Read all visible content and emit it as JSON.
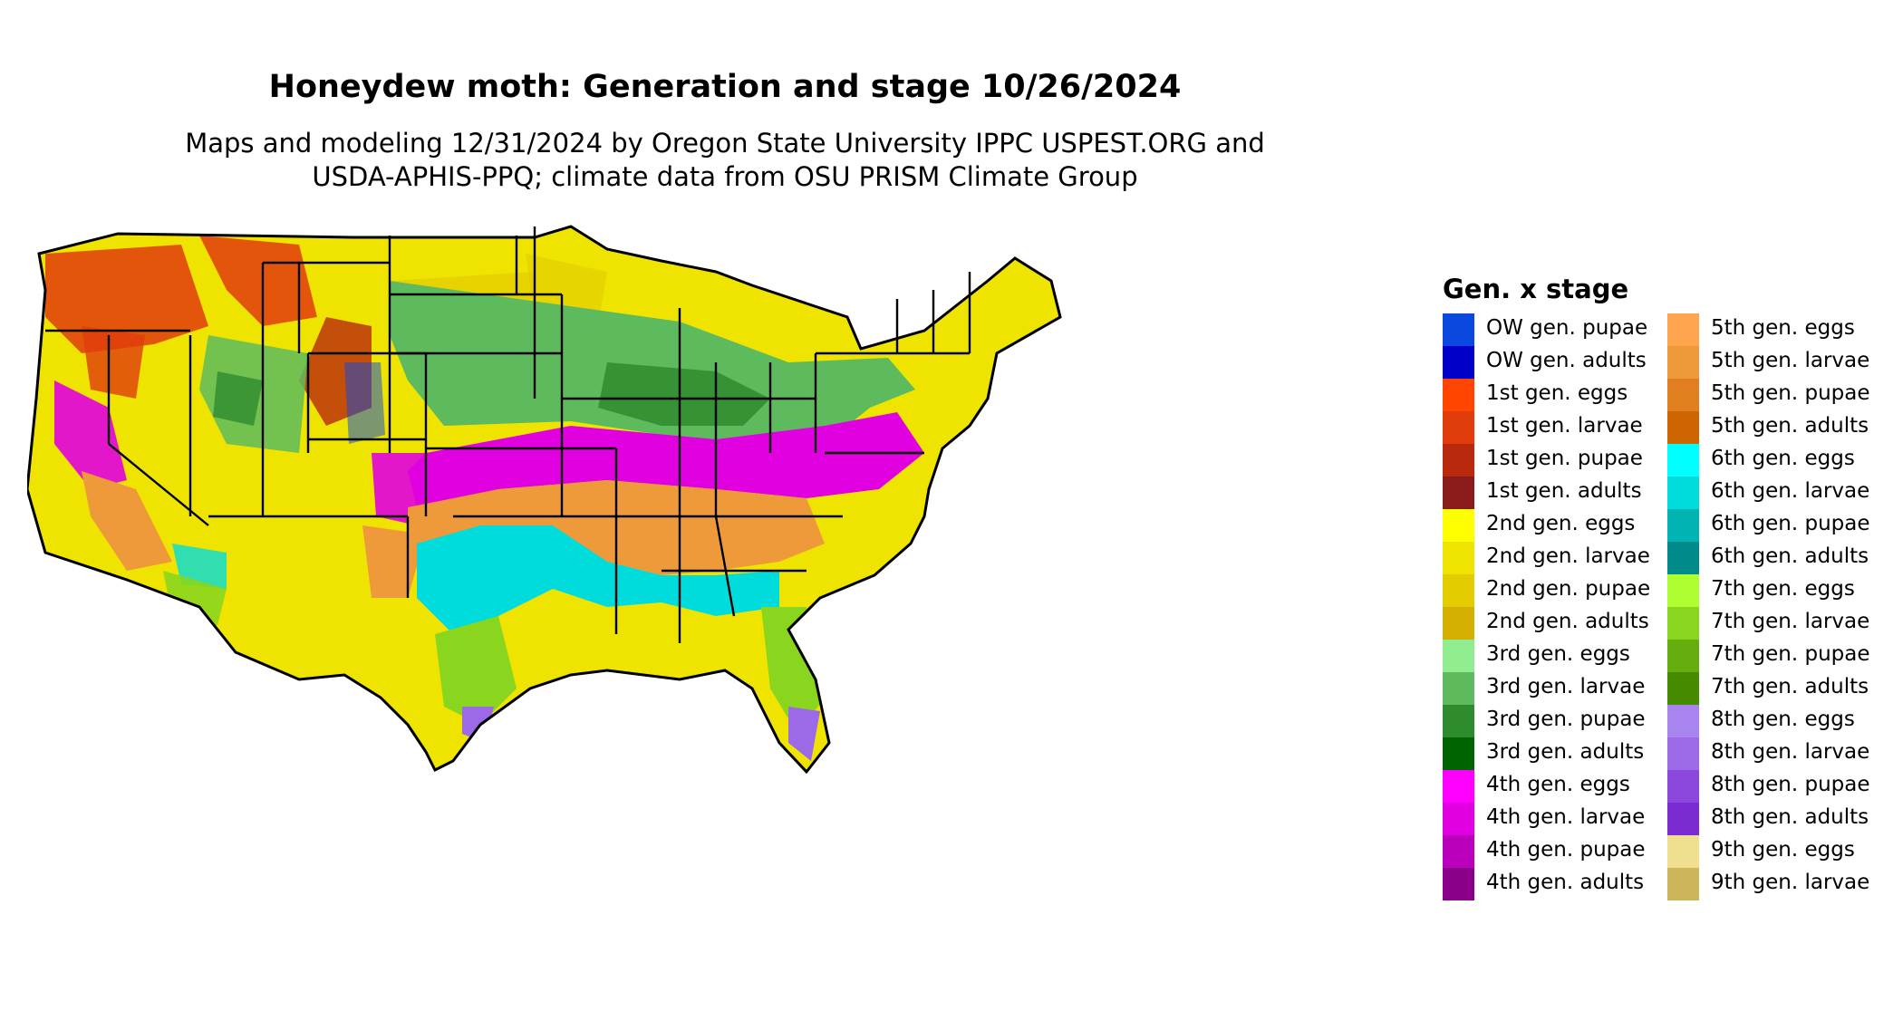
{
  "title": "Honeydew moth: Generation and stage 10/26/2024",
  "subtitle_line1": "Maps and modeling 12/31/2024 by Oregon State University IPPC USPEST.ORG and",
  "subtitle_line2": "USDA-APHIS-PPQ; climate data from OSU PRISM Climate Group",
  "legend": {
    "title": "Gen. x stage",
    "items": [
      {
        "label": "OW gen. pupae",
        "color": "#0a48e0"
      },
      {
        "label": "OW gen. adults",
        "color": "#0000c8"
      },
      {
        "label": "1st gen. eggs",
        "color": "#ff4500"
      },
      {
        "label": "1st gen. larvae",
        "color": "#e03c0c"
      },
      {
        "label": "1st gen. pupae",
        "color": "#b8290e"
      },
      {
        "label": "1st gen. adults",
        "color": "#8b1a1a"
      },
      {
        "label": "2nd gen. eggs",
        "color": "#ffff00"
      },
      {
        "label": "2nd gen. larvae",
        "color": "#eee400"
      },
      {
        "label": "2nd gen. pupae",
        "color": "#e3cc00"
      },
      {
        "label": "2nd gen. adults",
        "color": "#d4b000"
      },
      {
        "label": "3rd gen. eggs",
        "color": "#90ee90"
      },
      {
        "label": "3rd gen. larvae",
        "color": "#5dbb5d"
      },
      {
        "label": "3rd gen. pupae",
        "color": "#2e8b2e"
      },
      {
        "label": "3rd gen. adults",
        "color": "#006400"
      },
      {
        "label": "4th gen. eggs",
        "color": "#ff00ff"
      },
      {
        "label": "4th gen. larvae",
        "color": "#e000e0"
      },
      {
        "label": "4th gen. pupae",
        "color": "#bb00bb"
      },
      {
        "label": "4th gen. adults",
        "color": "#8b008b"
      },
      {
        "label": "5th gen. eggs",
        "color": "#ffa54f"
      },
      {
        "label": "5th gen. larvae",
        "color": "#ee9a3a"
      },
      {
        "label": "5th gen. pupae",
        "color": "#e07e20"
      },
      {
        "label": "5th gen. adults",
        "color": "#cd6600"
      },
      {
        "label": "6th gen. eggs",
        "color": "#00ffff"
      },
      {
        "label": "6th gen. larvae",
        "color": "#00dcdc"
      },
      {
        "label": "6th gen. pupae",
        "color": "#00b4b4"
      },
      {
        "label": "6th gen. adults",
        "color": "#008b8b"
      },
      {
        "label": "7th gen. eggs",
        "color": "#adff2f"
      },
      {
        "label": "7th gen. larvae",
        "color": "#8ad51e"
      },
      {
        "label": "7th gen. pupae",
        "color": "#66ad10"
      },
      {
        "label": "7th gen. adults",
        "color": "#458b00"
      },
      {
        "label": "8th gen. eggs",
        "color": "#a884f0"
      },
      {
        "label": "8th gen. larvae",
        "color": "#9c6ae6"
      },
      {
        "label": "8th gen. pupae",
        "color": "#8c48dc"
      },
      {
        "label": "8th gen. adults",
        "color": "#7a2cd0"
      },
      {
        "label": "9th gen. eggs",
        "color": "#eee08e"
      },
      {
        "label": "9th gen. larvae",
        "color": "#cdb65a"
      }
    ]
  }
}
